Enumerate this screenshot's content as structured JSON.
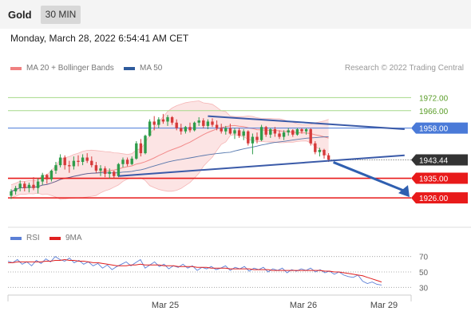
{
  "header": {
    "symbol": "Gold",
    "timeframe": "30 MIN"
  },
  "timestamp": "Monday, March 28, 2022 6:54:41 AM CET",
  "legend": {
    "items": [
      {
        "label": "MA 20 + Bollinger Bands",
        "color": "#f08080"
      },
      {
        "label": "MA 50",
        "color": "#2e5a9c"
      }
    ],
    "rsi_items": [
      {
        "label": "RSI",
        "color": "#5b7fd6"
      },
      {
        "label": "9MA",
        "color": "#e02020"
      }
    ]
  },
  "credit": "Research © 2022 Trading Central",
  "colors": {
    "up": "#2e9c4a",
    "down": "#d63a3a",
    "resistance": "#a6d98a",
    "pivot": "#4a7ad8",
    "support": "#e81a1a",
    "current": "#333333",
    "trend": "#3a5aa8",
    "arrow": "#2f5fb0"
  },
  "chart_data": [
    {
      "type": "candlestick",
      "x_ticks": [
        "Mar 25",
        "Mar 26",
        "Mar 29"
      ],
      "ylim": [
        1918,
        1982
      ],
      "levels": [
        {
          "value": 1972.0,
          "label": "1972.00",
          "kind": "resistance"
        },
        {
          "value": 1966.0,
          "label": "1966.00",
          "kind": "resistance"
        },
        {
          "value": 1958.0,
          "label": "1958.00",
          "kind": "pivot"
        },
        {
          "value": 1943.44,
          "label": "1943.44",
          "kind": "current"
        },
        {
          "value": 1935.0,
          "label": "1935.00",
          "kind": "support"
        },
        {
          "value": 1926.0,
          "label": "1926.00",
          "kind": "support"
        }
      ],
      "candles": [
        {
          "o": 1927.0,
          "h": 1930.0,
          "l": 1925.5,
          "c": 1929.0
        },
        {
          "o": 1929.0,
          "h": 1931.5,
          "l": 1927.5,
          "c": 1930.5
        },
        {
          "o": 1930.5,
          "h": 1934.0,
          "l": 1929.0,
          "c": 1932.5
        },
        {
          "o": 1932.5,
          "h": 1933.5,
          "l": 1929.0,
          "c": 1930.5
        },
        {
          "o": 1930.5,
          "h": 1933.0,
          "l": 1928.5,
          "c": 1932.0
        },
        {
          "o": 1932.0,
          "h": 1935.5,
          "l": 1929.5,
          "c": 1930.5
        },
        {
          "o": 1930.5,
          "h": 1935.0,
          "l": 1928.0,
          "c": 1933.5
        },
        {
          "o": 1933.5,
          "h": 1937.5,
          "l": 1932.0,
          "c": 1936.5
        },
        {
          "o": 1936.5,
          "h": 1937.0,
          "l": 1932.5,
          "c": 1934.5
        },
        {
          "o": 1934.5,
          "h": 1939.0,
          "l": 1933.5,
          "c": 1938.5
        },
        {
          "o": 1938.5,
          "h": 1942.5,
          "l": 1937.0,
          "c": 1941.0
        },
        {
          "o": 1941.0,
          "h": 1946.0,
          "l": 1940.0,
          "c": 1944.5
        },
        {
          "o": 1944.5,
          "h": 1945.5,
          "l": 1939.0,
          "c": 1941.0
        },
        {
          "o": 1941.0,
          "h": 1943.0,
          "l": 1937.5,
          "c": 1940.5
        },
        {
          "o": 1940.5,
          "h": 1945.0,
          "l": 1939.0,
          "c": 1943.0
        },
        {
          "o": 1943.0,
          "h": 1945.5,
          "l": 1940.5,
          "c": 1942.5
        },
        {
          "o": 1942.5,
          "h": 1946.0,
          "l": 1941.0,
          "c": 1944.5
        },
        {
          "o": 1944.5,
          "h": 1946.5,
          "l": 1942.0,
          "c": 1943.0
        },
        {
          "o": 1943.0,
          "h": 1945.0,
          "l": 1940.0,
          "c": 1941.0
        },
        {
          "o": 1941.0,
          "h": 1942.5,
          "l": 1937.5,
          "c": 1938.5
        },
        {
          "o": 1938.5,
          "h": 1941.0,
          "l": 1936.0,
          "c": 1939.5
        },
        {
          "o": 1939.5,
          "h": 1940.5,
          "l": 1935.5,
          "c": 1937.0
        },
        {
          "o": 1937.0,
          "h": 1939.5,
          "l": 1935.0,
          "c": 1938.0
        },
        {
          "o": 1938.0,
          "h": 1938.5,
          "l": 1935.0,
          "c": 1936.0
        },
        {
          "o": 1936.0,
          "h": 1942.0,
          "l": 1935.5,
          "c": 1941.5
        },
        {
          "o": 1941.5,
          "h": 1944.5,
          "l": 1940.0,
          "c": 1943.5
        },
        {
          "o": 1943.5,
          "h": 1944.5,
          "l": 1940.5,
          "c": 1941.5
        },
        {
          "o": 1941.5,
          "h": 1945.0,
          "l": 1941.0,
          "c": 1944.0
        },
        {
          "o": 1944.0,
          "h": 1952.0,
          "l": 1943.5,
          "c": 1951.0
        },
        {
          "o": 1951.0,
          "h": 1953.0,
          "l": 1945.0,
          "c": 1946.5
        },
        {
          "o": 1946.5,
          "h": 1955.0,
          "l": 1946.0,
          "c": 1954.5
        },
        {
          "o": 1954.5,
          "h": 1962.0,
          "l": 1954.0,
          "c": 1961.0
        },
        {
          "o": 1961.0,
          "h": 1963.5,
          "l": 1957.0,
          "c": 1959.5
        },
        {
          "o": 1959.5,
          "h": 1963.0,
          "l": 1958.0,
          "c": 1962.0
        },
        {
          "o": 1962.0,
          "h": 1964.5,
          "l": 1960.0,
          "c": 1961.0
        },
        {
          "o": 1961.0,
          "h": 1964.0,
          "l": 1959.0,
          "c": 1963.0
        },
        {
          "o": 1963.0,
          "h": 1963.5,
          "l": 1959.5,
          "c": 1960.5
        },
        {
          "o": 1960.5,
          "h": 1962.0,
          "l": 1957.0,
          "c": 1958.0
        },
        {
          "o": 1958.0,
          "h": 1960.0,
          "l": 1955.0,
          "c": 1956.5
        },
        {
          "o": 1956.5,
          "h": 1959.0,
          "l": 1955.5,
          "c": 1958.5
        },
        {
          "o": 1958.5,
          "h": 1960.5,
          "l": 1956.0,
          "c": 1957.0
        },
        {
          "o": 1957.0,
          "h": 1961.0,
          "l": 1956.5,
          "c": 1960.5
        },
        {
          "o": 1960.5,
          "h": 1963.0,
          "l": 1959.0,
          "c": 1961.5
        },
        {
          "o": 1961.5,
          "h": 1962.5,
          "l": 1958.0,
          "c": 1959.0
        },
        {
          "o": 1959.0,
          "h": 1962.0,
          "l": 1957.5,
          "c": 1961.0
        },
        {
          "o": 1961.0,
          "h": 1962.5,
          "l": 1958.5,
          "c": 1959.5
        },
        {
          "o": 1959.5,
          "h": 1961.5,
          "l": 1957.0,
          "c": 1958.0
        },
        {
          "o": 1958.0,
          "h": 1960.0,
          "l": 1955.5,
          "c": 1956.5
        },
        {
          "o": 1956.5,
          "h": 1959.0,
          "l": 1955.0,
          "c": 1958.0
        },
        {
          "o": 1958.0,
          "h": 1960.0,
          "l": 1955.0,
          "c": 1955.5
        },
        {
          "o": 1955.5,
          "h": 1958.0,
          "l": 1953.0,
          "c": 1957.0
        },
        {
          "o": 1957.0,
          "h": 1958.0,
          "l": 1953.5,
          "c": 1954.5
        },
        {
          "o": 1954.5,
          "h": 1957.5,
          "l": 1952.5,
          "c": 1956.5
        },
        {
          "o": 1956.5,
          "h": 1957.0,
          "l": 1950.0,
          "c": 1951.0
        },
        {
          "o": 1951.0,
          "h": 1955.5,
          "l": 1946.0,
          "c": 1954.0
        },
        {
          "o": 1954.0,
          "h": 1956.0,
          "l": 1951.0,
          "c": 1952.5
        },
        {
          "o": 1952.5,
          "h": 1959.5,
          "l": 1952.0,
          "c": 1958.5
        },
        {
          "o": 1958.5,
          "h": 1959.0,
          "l": 1954.0,
          "c": 1955.0
        },
        {
          "o": 1955.0,
          "h": 1958.0,
          "l": 1953.5,
          "c": 1957.5
        },
        {
          "o": 1957.5,
          "h": 1958.5,
          "l": 1954.0,
          "c": 1955.5
        },
        {
          "o": 1955.5,
          "h": 1957.0,
          "l": 1953.0,
          "c": 1954.0
        },
        {
          "o": 1954.0,
          "h": 1957.0,
          "l": 1952.5,
          "c": 1956.0
        },
        {
          "o": 1956.0,
          "h": 1958.0,
          "l": 1954.5,
          "c": 1957.0
        },
        {
          "o": 1957.0,
          "h": 1957.5,
          "l": 1954.0,
          "c": 1955.0
        },
        {
          "o": 1955.0,
          "h": 1958.0,
          "l": 1954.5,
          "c": 1957.5
        },
        {
          "o": 1957.5,
          "h": 1958.0,
          "l": 1955.5,
          "c": 1956.5
        },
        {
          "o": 1956.5,
          "h": 1958.0,
          "l": 1955.0,
          "c": 1957.5
        },
        {
          "o": 1957.5,
          "h": 1958.0,
          "l": 1950.0,
          "c": 1951.0
        },
        {
          "o": 1951.0,
          "h": 1952.0,
          "l": 1946.0,
          "c": 1947.0
        },
        {
          "o": 1947.0,
          "h": 1949.0,
          "l": 1945.0,
          "c": 1948.0
        },
        {
          "o": 1948.0,
          "h": 1948.5,
          "l": 1944.0,
          "c": 1945.5
        },
        {
          "o": 1945.5,
          "h": 1946.5,
          "l": 1942.5,
          "c": 1943.5
        }
      ],
      "trendlines": [
        {
          "name": "upper",
          "from": {
            "index": 44,
            "price": 1963.5
          },
          "to": {
            "index": 88,
            "price": 1957.5
          }
        },
        {
          "name": "lower",
          "from": {
            "index": 24,
            "price": 1936.0
          },
          "to": {
            "index": 88,
            "price": 1945.5
          }
        }
      ],
      "projection": {
        "from": 1943.44,
        "to": 1926.0
      }
    },
    {
      "type": "line",
      "title": "RSI",
      "y_ticks": [
        70,
        50,
        30
      ],
      "ylim": [
        20,
        80
      ],
      "series": [
        {
          "name": "RSI",
          "values": [
            64,
            62,
            66,
            60,
            63,
            58,
            65,
            61,
            67,
            63,
            70,
            66,
            64,
            68,
            62,
            65,
            60,
            63,
            58,
            61,
            55,
            59,
            53,
            57,
            60,
            63,
            58,
            62,
            66,
            55,
            59,
            63,
            57,
            60,
            54,
            58,
            56,
            60,
            55,
            58,
            52,
            56,
            54,
            57,
            53,
            55,
            58,
            52,
            56,
            54,
            57,
            51,
            55,
            53,
            56,
            50,
            54,
            52,
            55,
            49,
            53,
            51,
            54,
            52,
            55,
            50,
            53,
            49,
            51,
            47,
            50,
            46,
            44,
            43,
            46,
            38,
            35,
            37,
            34,
            33
          ]
        },
        {
          "name": "9MA",
          "values": [
            62,
            62,
            63,
            63,
            63,
            63,
            63,
            63,
            64,
            64,
            65,
            65,
            66,
            65,
            65,
            64,
            64,
            63,
            62,
            62,
            61,
            60,
            59,
            58,
            58,
            58,
            59,
            59,
            60,
            59,
            59,
            59,
            59,
            58,
            58,
            58,
            57,
            57,
            57,
            57,
            56,
            56,
            56,
            55,
            55,
            55,
            55,
            54,
            54,
            54,
            54,
            54,
            53,
            53,
            53,
            53,
            52,
            52,
            52,
            52,
            52,
            52,
            52,
            52,
            52,
            52,
            52,
            51,
            51,
            50,
            50,
            49,
            48,
            47,
            46,
            45,
            43,
            41,
            39,
            37
          ]
        }
      ]
    }
  ]
}
